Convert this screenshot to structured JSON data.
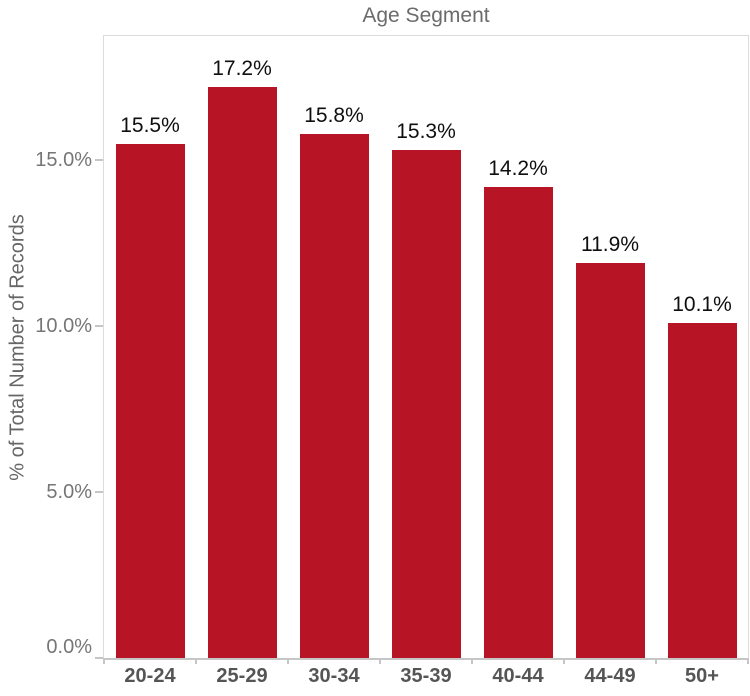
{
  "chart_data": {
    "type": "bar",
    "title": "Age Segment",
    "xlabel": "",
    "ylabel": "% of Total Number of Records",
    "categories": [
      "20-24",
      "25-29",
      "30-34",
      "35-39",
      "40-44",
      "44-49",
      "50+"
    ],
    "values": [
      15.5,
      17.2,
      15.8,
      15.3,
      14.2,
      11.9,
      10.1
    ],
    "value_labels": [
      "15.5%",
      "17.2%",
      "15.8%",
      "15.3%",
      "14.2%",
      "11.9%",
      "10.1%"
    ],
    "yticks": [
      {
        "value": 0,
        "label": "0.0%"
      },
      {
        "value": 5,
        "label": "5.0%"
      },
      {
        "value": 10,
        "label": "10.0%"
      },
      {
        "value": 15,
        "label": "15.0%"
      }
    ],
    "ylim": [
      0,
      18.75
    ],
    "grid": false,
    "legend_position": "none",
    "colors": {
      "bar": "#b71426",
      "title": "#6b6b6b",
      "axis_title": "#666666",
      "tick_label": "#767676",
      "x_label": "#555555",
      "value_label": "#0f0f0f",
      "axis_line": "#c6c6c6",
      "plot_border": "#dcdcdc"
    }
  }
}
